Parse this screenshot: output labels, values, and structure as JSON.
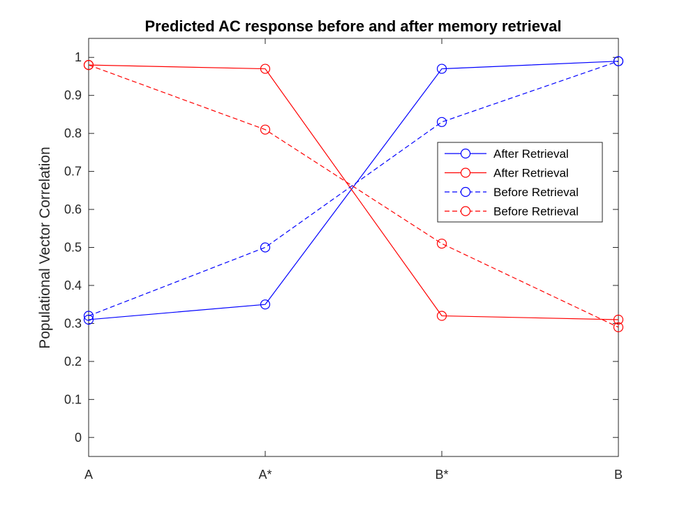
{
  "chart_data": {
    "type": "line",
    "title": "Predicted AC response before and after memory retrieval",
    "xlabel": "",
    "ylabel": "Populational Vector Correlation",
    "categories": [
      "A",
      "A*",
      "B*",
      "B"
    ],
    "ylim": [
      -0.05,
      1.05
    ],
    "yticks": [
      0,
      0.1,
      0.2,
      0.3,
      0.4,
      0.5,
      0.6,
      0.7,
      0.8,
      0.9,
      1
    ],
    "ytick_labels": [
      "0",
      "0.1",
      "0.2",
      "0.3",
      "0.4",
      "0.5",
      "0.6",
      "0.7",
      "0.8",
      "0.9",
      "1"
    ],
    "grid": false,
    "legend_position": "center-right",
    "series": [
      {
        "name": "After Retrieval",
        "values": [
          0.31,
          0.35,
          0.97,
          0.99
        ],
        "color": "#0000ff",
        "dash": "solid",
        "marker": "circle"
      },
      {
        "name": "After Retrieval",
        "values": [
          0.98,
          0.97,
          0.32,
          0.31
        ],
        "color": "#ff0000",
        "dash": "solid",
        "marker": "circle"
      },
      {
        "name": "Before Retrieval",
        "values": [
          0.32,
          0.5,
          0.83,
          0.99
        ],
        "color": "#0000ff",
        "dash": "dashed",
        "marker": "circle"
      },
      {
        "name": "Before Retrieval",
        "values": [
          0.98,
          0.81,
          0.51,
          0.29
        ],
        "color": "#ff0000",
        "dash": "dashed",
        "marker": "circle"
      }
    ]
  }
}
